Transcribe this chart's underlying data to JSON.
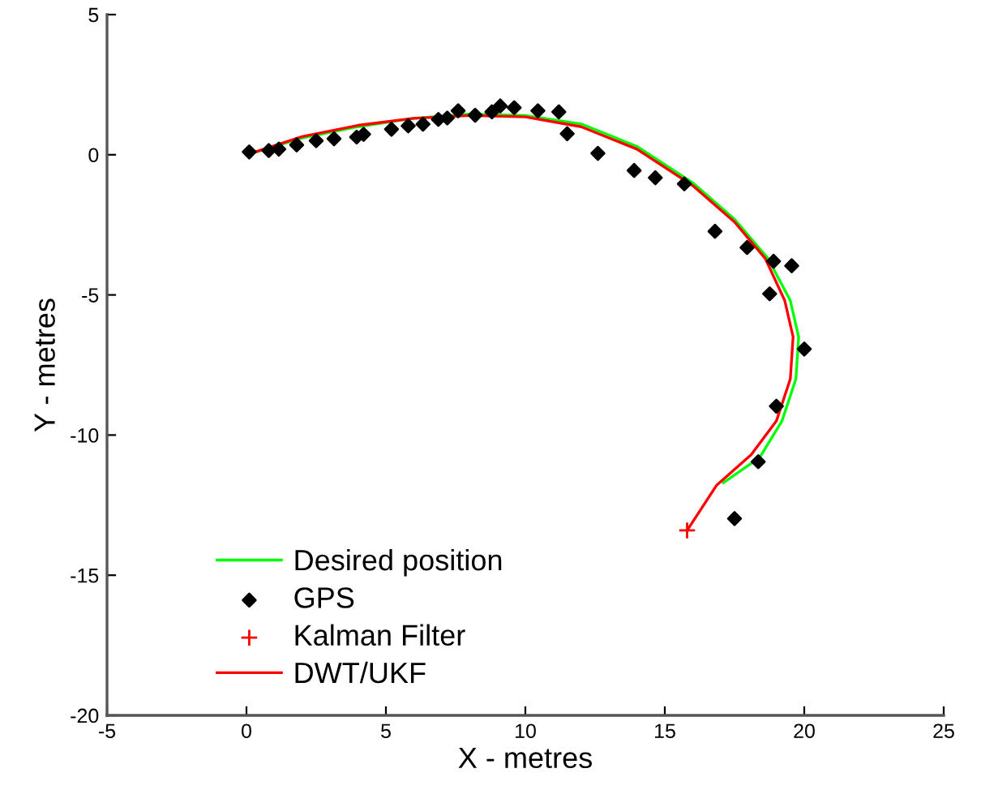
{
  "chart_data": {
    "type": "line",
    "xlabel": "X - metres",
    "ylabel": "Y - metres",
    "xlim": [
      -5,
      25
    ],
    "ylim": [
      -20,
      5
    ],
    "xticks": [
      -5,
      0,
      5,
      10,
      15,
      20,
      25
    ],
    "yticks": [
      -20,
      -15,
      -10,
      -5,
      0,
      5
    ],
    "grid": false,
    "legend": "bottom left",
    "series": [
      {
        "name": "Desired position",
        "color": "#00ff00",
        "x": [
          0,
          2,
          4,
          6,
          8,
          10,
          12,
          14,
          16,
          17.5,
          18.7,
          19.5,
          19.8,
          19.7,
          19.2,
          18.4,
          17.1
        ],
        "values": [
          0,
          0.6,
          1.0,
          1.3,
          1.45,
          1.4,
          1.1,
          0.3,
          -1.0,
          -2.3,
          -3.7,
          -5.2,
          -6.5,
          -8,
          -9.5,
          -10.8,
          -11.7
        ]
      },
      {
        "name": "GPS",
        "type": "scatter",
        "marker": "diamond",
        "color": "#000000",
        "x": [
          0.1,
          0.8,
          1.16,
          1.8,
          2.5,
          3.14,
          3.95,
          4.2,
          5.2,
          5.8,
          6.33,
          6.88,
          7.2,
          7.59,
          8.2,
          8.8,
          9.1,
          9.6,
          10.45,
          11.2,
          11.5,
          12.6,
          13.9,
          14.66,
          15.7,
          16.8,
          17.95,
          18.9,
          19.55,
          18.76,
          20.0,
          19.0,
          18.35,
          17.5
        ],
        "values": [
          0.1,
          0.15,
          0.2,
          0.35,
          0.5,
          0.57,
          0.63,
          0.73,
          0.91,
          1.03,
          1.09,
          1.26,
          1.31,
          1.57,
          1.41,
          1.53,
          1.74,
          1.68,
          1.57,
          1.53,
          0.75,
          0.05,
          -0.56,
          -0.82,
          -1.04,
          -2.73,
          -3.31,
          -3.8,
          -3.96,
          -4.96,
          -6.93,
          -8.97,
          -10.95,
          -12.98
        ]
      },
      {
        "name": "Kalman Filter",
        "type": "scatter",
        "marker": "cross",
        "color": "#ff0000",
        "x": [
          15.8
        ],
        "values": [
          -13.4
        ]
      },
      {
        "name": "DWT/UKF",
        "color": "#ff0000",
        "x": [
          0,
          2,
          4,
          6,
          8,
          10,
          12,
          14,
          16,
          17.5,
          18.6,
          19.3,
          19.6,
          19.5,
          19.0,
          18.1,
          16.85,
          15.8
        ],
        "values": [
          0,
          0.65,
          1.05,
          1.3,
          1.4,
          1.35,
          1.0,
          0.2,
          -1.1,
          -2.4,
          -3.7,
          -5.2,
          -6.5,
          -8,
          -9.5,
          -10.7,
          -11.8,
          -13.4
        ]
      }
    ]
  }
}
